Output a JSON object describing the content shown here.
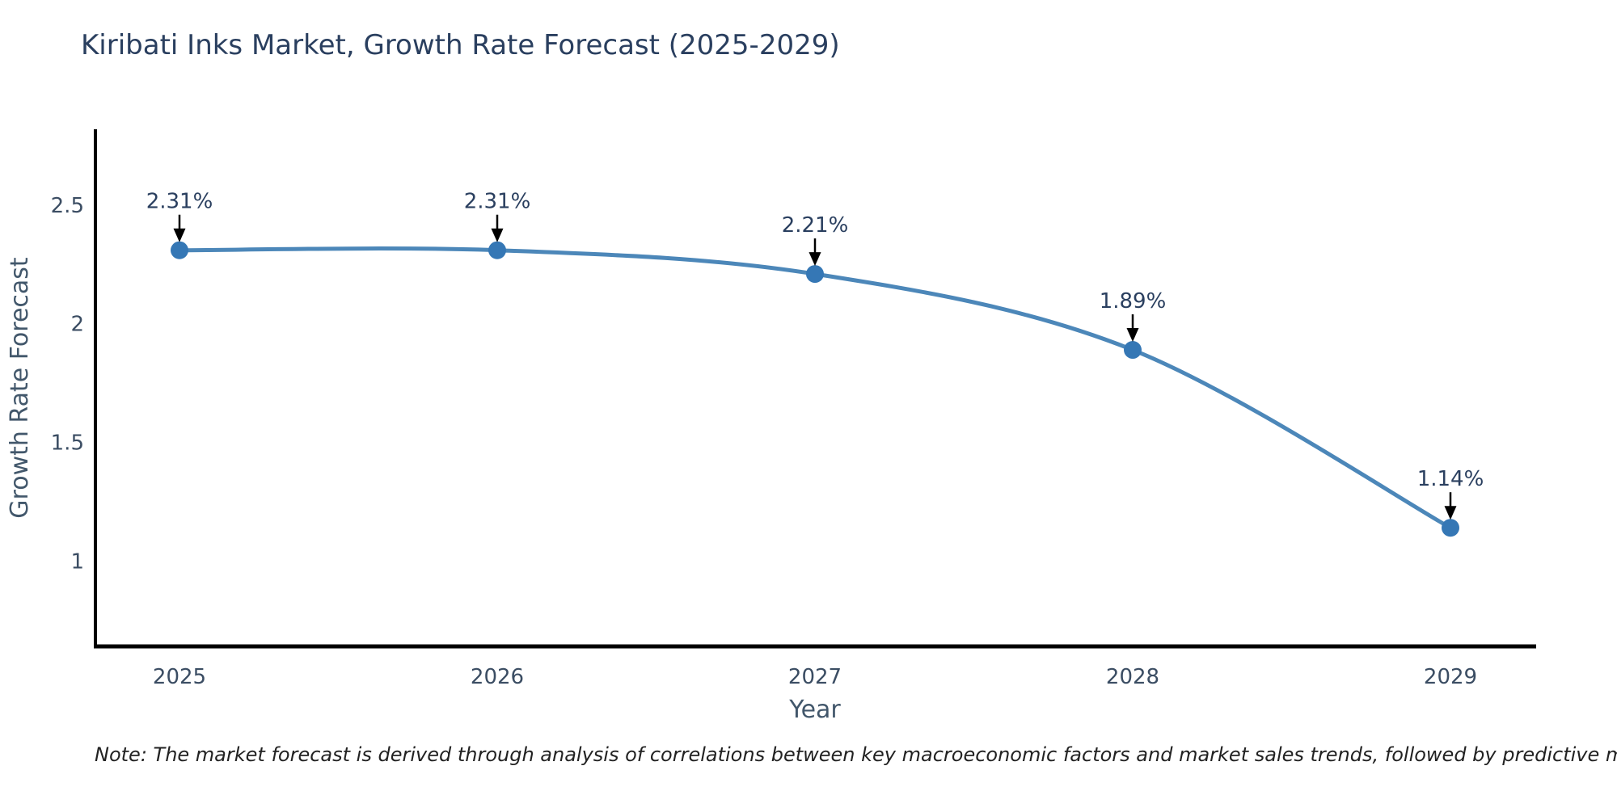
{
  "title": "Kiribati Inks Market, Growth Rate Forecast (2025-2029)",
  "note": "Note: The market forecast is derived through analysis of correlations between key macroeconomic factors and market sales trends, followed by predictive modeling to project future sales",
  "chart_data": {
    "type": "line",
    "x": [
      "2025",
      "2026",
      "2027",
      "2028",
      "2029"
    ],
    "values": [
      2.31,
      2.31,
      2.21,
      1.89,
      1.14
    ],
    "point_labels": [
      "2.31%",
      "2.31%",
      "2.21%",
      "1.89%",
      "1.14%"
    ],
    "title": "Kiribati Inks Market, Growth Rate Forecast (2025-2029)",
    "xlabel": "Year",
    "ylabel": "Growth Rate Forecast",
    "yticks": [
      1,
      1.5,
      2,
      2.5
    ],
    "ylim": [
      0.64,
      2.82
    ],
    "grid": false,
    "legend": "none",
    "line_color": "#4c87b9",
    "marker_color": "#3577b5",
    "arrow_color": "#000000",
    "axis_color": "#000000",
    "text_color": "#2a3f5f"
  }
}
